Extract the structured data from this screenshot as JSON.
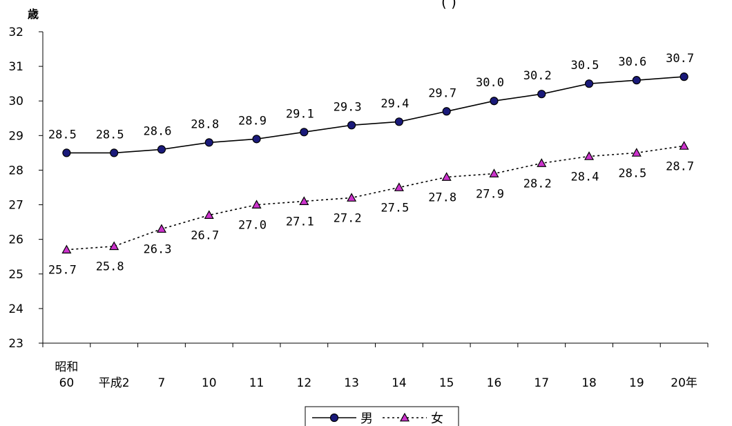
{
  "chart_data": {
    "type": "line",
    "title": "",
    "title_fragment": "(   )",
    "y_unit_label": "歳",
    "ylim": [
      23,
      32
    ],
    "y_ticks": [
      23,
      24,
      25,
      26,
      27,
      28,
      29,
      30,
      31,
      32
    ],
    "categories": [
      {
        "top": "昭和",
        "bottom": "60"
      },
      {
        "top": "",
        "bottom": "平成2"
      },
      {
        "top": "",
        "bottom": "7"
      },
      {
        "top": "",
        "bottom": "10"
      },
      {
        "top": "",
        "bottom": "11"
      },
      {
        "top": "",
        "bottom": "12"
      },
      {
        "top": "",
        "bottom": "13"
      },
      {
        "top": "",
        "bottom": "14"
      },
      {
        "top": "",
        "bottom": "15"
      },
      {
        "top": "",
        "bottom": "16"
      },
      {
        "top": "",
        "bottom": "17"
      },
      {
        "top": "",
        "bottom": "18"
      },
      {
        "top": "",
        "bottom": "19"
      },
      {
        "top": "",
        "bottom": "20年"
      }
    ],
    "series": [
      {
        "name": "男",
        "values": [
          28.5,
          28.5,
          28.6,
          28.8,
          28.9,
          29.1,
          29.3,
          29.4,
          29.7,
          30.0,
          30.2,
          30.5,
          30.6,
          30.7
        ],
        "labels": [
          "28.5",
          "28.5",
          "28.6",
          "28.8",
          "28.9",
          "29.1",
          "29.3",
          "29.4",
          "29.7",
          "30.0",
          "30.2",
          "30.5",
          "30.6",
          "30.7"
        ],
        "line_style": "solid",
        "marker": "circle",
        "marker_color": "#1a1a7a",
        "label_position": "above"
      },
      {
        "name": "女",
        "values": [
          25.7,
          25.8,
          26.3,
          26.7,
          27.0,
          27.1,
          27.2,
          27.5,
          27.8,
          27.9,
          28.2,
          28.4,
          28.5,
          28.7
        ],
        "labels": [
          "25.7",
          "25.8",
          "26.3",
          "26.7",
          "27.0",
          "27.1",
          "27.2",
          "27.5",
          "27.8",
          "27.9",
          "28.2",
          "28.4",
          "28.5",
          "28.7"
        ],
        "line_style": "dotted",
        "marker": "triangle",
        "marker_color": "#cc33cc",
        "label_position": "below"
      }
    ],
    "legend": {
      "position": "bottom-center"
    },
    "grid": false
  }
}
